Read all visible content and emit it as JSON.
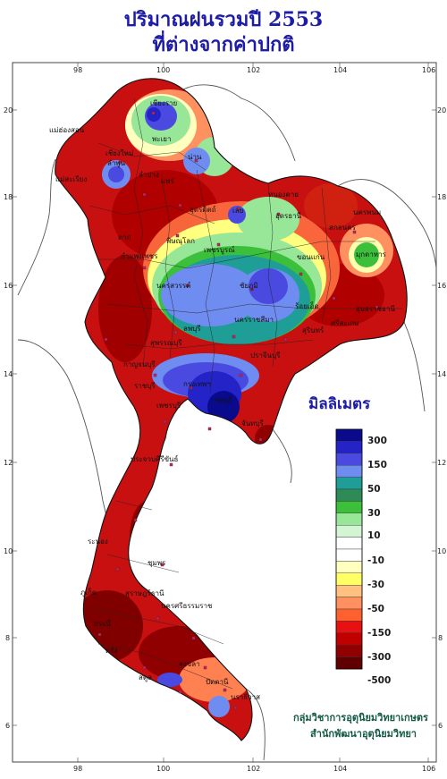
{
  "title": "ปริมาณฝนรวมปี  2553",
  "subtitle": "ที่ต่างจากค่าปกติ",
  "axes": {
    "lon_ticks": [
      "98",
      "100",
      "102",
      "104",
      "106"
    ],
    "lat_ticks": [
      "20",
      "18",
      "16",
      "14",
      "12",
      "10",
      "8",
      "6"
    ]
  },
  "legend": {
    "title": "มิลลิเมตร",
    "colors": [
      "#0a0a8c",
      "#2323c8",
      "#4a4ae0",
      "#6f8cf0",
      "#1e9e96",
      "#2e8b57",
      "#3cc03c",
      "#98e698",
      "#d4f5d4",
      "#ffffff",
      "#ffffff",
      "#ffffc0",
      "#ffff66",
      "#ffc080",
      "#ff9060",
      "#ff6030",
      "#e81010",
      "#c00000",
      "#900000",
      "#600000"
    ],
    "labels": [
      "300",
      "150",
      "50",
      "30",
      "10",
      "-10",
      "-30",
      "-50",
      "-150",
      "-300",
      "-500"
    ]
  },
  "credit": {
    "line1": "กลุ่มวิชาการอุตุนิยมวิทยาเกษตร",
    "line2": "สำนักพัฒนาอุตุนิยมวิทยา"
  },
  "place_labels": [
    "เชียงราย",
    "แม่ฮ่องสอน",
    "พะเยา",
    "เชียงใหม่",
    "น่าน",
    "ลำพูน",
    "ลำปาง",
    "แพร่",
    "แม่สะเรียง",
    "อุตรดิตถ์",
    "หนองคาย",
    "เลย",
    "อุดรธานี",
    "นครพนม",
    "สกลนคร",
    "ตาก",
    "พิษณุโลก",
    "เพชรบูรณ์",
    "ขอนแก่น",
    "มุกดาหาร",
    "กำแพงเพชร",
    "นครสวรรค์",
    "ชัยภูมิ",
    "ร้อยเอ็ด",
    "อุบลราชธานี",
    "ลพบุรี",
    "นครราชสีมา",
    "สุรินทร์",
    "ศรีสะเกษ",
    "สุพรรณบุรี",
    "ปราจีนบุรี",
    "กาญจนบุรี",
    "กรุงเทพฯ",
    "ชลบุรี",
    "ราชบุรี",
    "จันทบุรี",
    "เพชรบุรี",
    "ประจวบคีรีขันธ์",
    "ชุมพร",
    "ระนอง",
    "นครศรีธรรมราช",
    "สุราษฎร์ธานี",
    "กระบี่",
    "ภูเก็ต",
    "ตรัง",
    "สงขลา",
    "ปัตตานี",
    "นราธิวาส",
    "สตูล"
  ]
}
